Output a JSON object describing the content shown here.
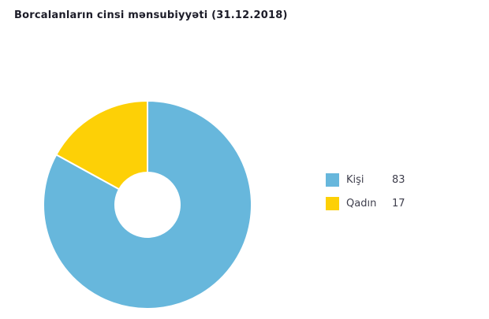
{
  "page": {
    "background": "#ffffff"
  },
  "header": {
    "title": "Borcalanların cinsi mənsubiyyəti (31.12.2018)"
  },
  "chart_data": {
    "type": "pie",
    "subtype": "donut",
    "title": "Borcalanların cinsi mənsubiyyəti (31.12.2018)",
    "categories": [
      "Kişi",
      "Qadın"
    ],
    "values": [
      83,
      17
    ],
    "colors": [
      "#67b7dc",
      "#fdd006"
    ],
    "slice_border_color": "#ffffff",
    "slice_border_width": 2,
    "start_angle_deg": 0,
    "direction": "clockwise",
    "inner_radius_ratio": 0.31,
    "legend_position": "right",
    "legend_shows_values": true
  },
  "legend": {
    "items": [
      {
        "label": "Kişi",
        "value": "83",
        "color": "#67b7dc"
      },
      {
        "label": "Qadın",
        "value": "17",
        "color": "#fdd006"
      }
    ]
  }
}
